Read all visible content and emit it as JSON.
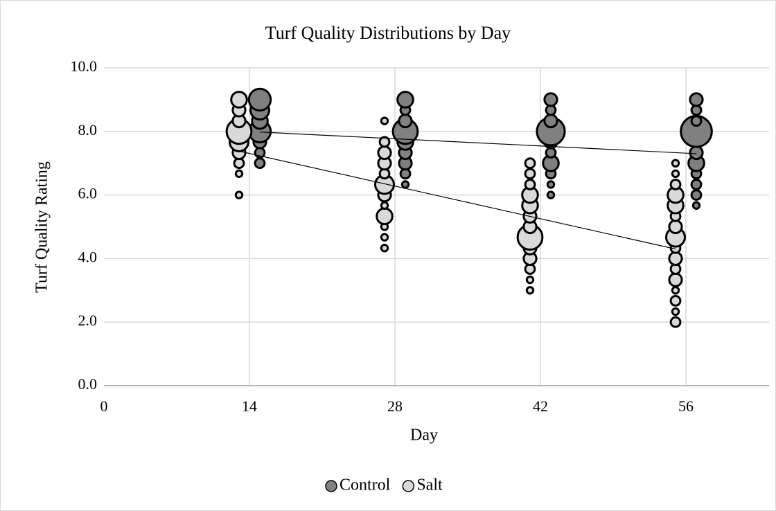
{
  "chart_data": {
    "type": "bubble",
    "title": "Turf Quality Distributions by Day",
    "x_label": "Day",
    "y_label": "Turf Quality Rating",
    "xlim": [
      0,
      64
    ],
    "xticks": [
      0,
      14,
      28,
      42,
      56
    ],
    "ylim": [
      0,
      10
    ],
    "yticks": [
      {
        "value": 0,
        "label": "0.0"
      },
      {
        "value": 2,
        "label": "2.0"
      },
      {
        "value": 4,
        "label": "4.0"
      },
      {
        "value": 6,
        "label": "6.0"
      },
      {
        "value": 8,
        "label": "8.0"
      },
      {
        "value": 10,
        "label": "10.0"
      }
    ],
    "grid": true,
    "legend": "bottom",
    "series": [
      {
        "name": "Control",
        "color": "#808080",
        "x": [
          15,
          15,
          15,
          15,
          15,
          15,
          15,
          29,
          29,
          29,
          29,
          29,
          29,
          29,
          29,
          29,
          43,
          43,
          43,
          43,
          43,
          43,
          43,
          43,
          43,
          43,
          57,
          57,
          57,
          57,
          57,
          57,
          57,
          57,
          57,
          57
        ],
        "values": [
          7.0,
          7.33,
          7.67,
          8.0,
          8.33,
          8.67,
          9.0,
          6.33,
          6.67,
          7.0,
          7.33,
          7.67,
          8.0,
          8.33,
          8.67,
          9.0,
          6.0,
          6.33,
          6.67,
          7.0,
          7.33,
          7.67,
          8.0,
          8.33,
          8.67,
          9.0,
          5.67,
          6.0,
          6.33,
          6.67,
          7.0,
          7.33,
          8.0,
          8.33,
          8.67,
          9.0
        ],
        "sizes": [
          2,
          2,
          3,
          6,
          4,
          5,
          6,
          1,
          2,
          3,
          3,
          4,
          7,
          3,
          2,
          4,
          1,
          1,
          2,
          4,
          2,
          3,
          8,
          3,
          2,
          3,
          1,
          2,
          2,
          2,
          4,
          3,
          9,
          2,
          2,
          3
        ]
      },
      {
        "name": "Salt",
        "color": "#d9d9d9",
        "x": [
          13,
          13,
          13,
          13,
          13,
          13,
          13,
          13,
          13,
          27,
          27,
          27,
          27,
          27,
          27,
          27,
          27,
          27,
          27,
          27,
          27,
          41,
          41,
          41,
          41,
          41,
          41,
          41,
          41,
          41,
          41,
          41,
          41,
          41,
          55,
          55,
          55,
          55,
          55,
          55,
          55,
          55,
          55,
          55,
          55,
          55,
          55,
          55,
          55,
          55
        ],
        "values": [
          6.0,
          6.67,
          7.0,
          7.33,
          7.67,
          8.0,
          8.33,
          8.67,
          9.0,
          4.33,
          4.67,
          5.0,
          5.33,
          5.67,
          6.0,
          6.33,
          6.67,
          7.0,
          7.33,
          7.67,
          8.33,
          3.0,
          3.33,
          3.67,
          4.0,
          4.33,
          4.67,
          5.0,
          5.33,
          5.67,
          6.0,
          6.33,
          6.67,
          7.0,
          2.0,
          2.33,
          2.67,
          3.0,
          3.33,
          3.67,
          4.0,
          4.33,
          4.67,
          5.0,
          5.33,
          5.67,
          6.0,
          6.33,
          6.67,
          7.0
        ],
        "sizes": [
          1,
          1,
          2,
          3,
          5,
          7,
          3,
          3,
          4,
          1,
          1,
          1,
          4,
          1,
          3,
          5,
          2,
          3,
          3,
          2,
          1,
          1,
          1,
          2,
          3,
          3,
          7,
          3,
          3,
          4,
          4,
          2,
          2,
          2,
          2,
          1,
          2,
          1,
          3,
          2,
          3,
          2,
          5,
          3,
          2,
          4,
          4,
          2,
          1,
          1
        ]
      }
    ],
    "trendlines": [
      {
        "color": "#000000",
        "x": [
          15,
          57
        ],
        "values": [
          7.98,
          7.3
        ]
      },
      {
        "color": "#000000",
        "x": [
          13,
          55
        ],
        "values": [
          7.38,
          4.3
        ]
      }
    ]
  }
}
